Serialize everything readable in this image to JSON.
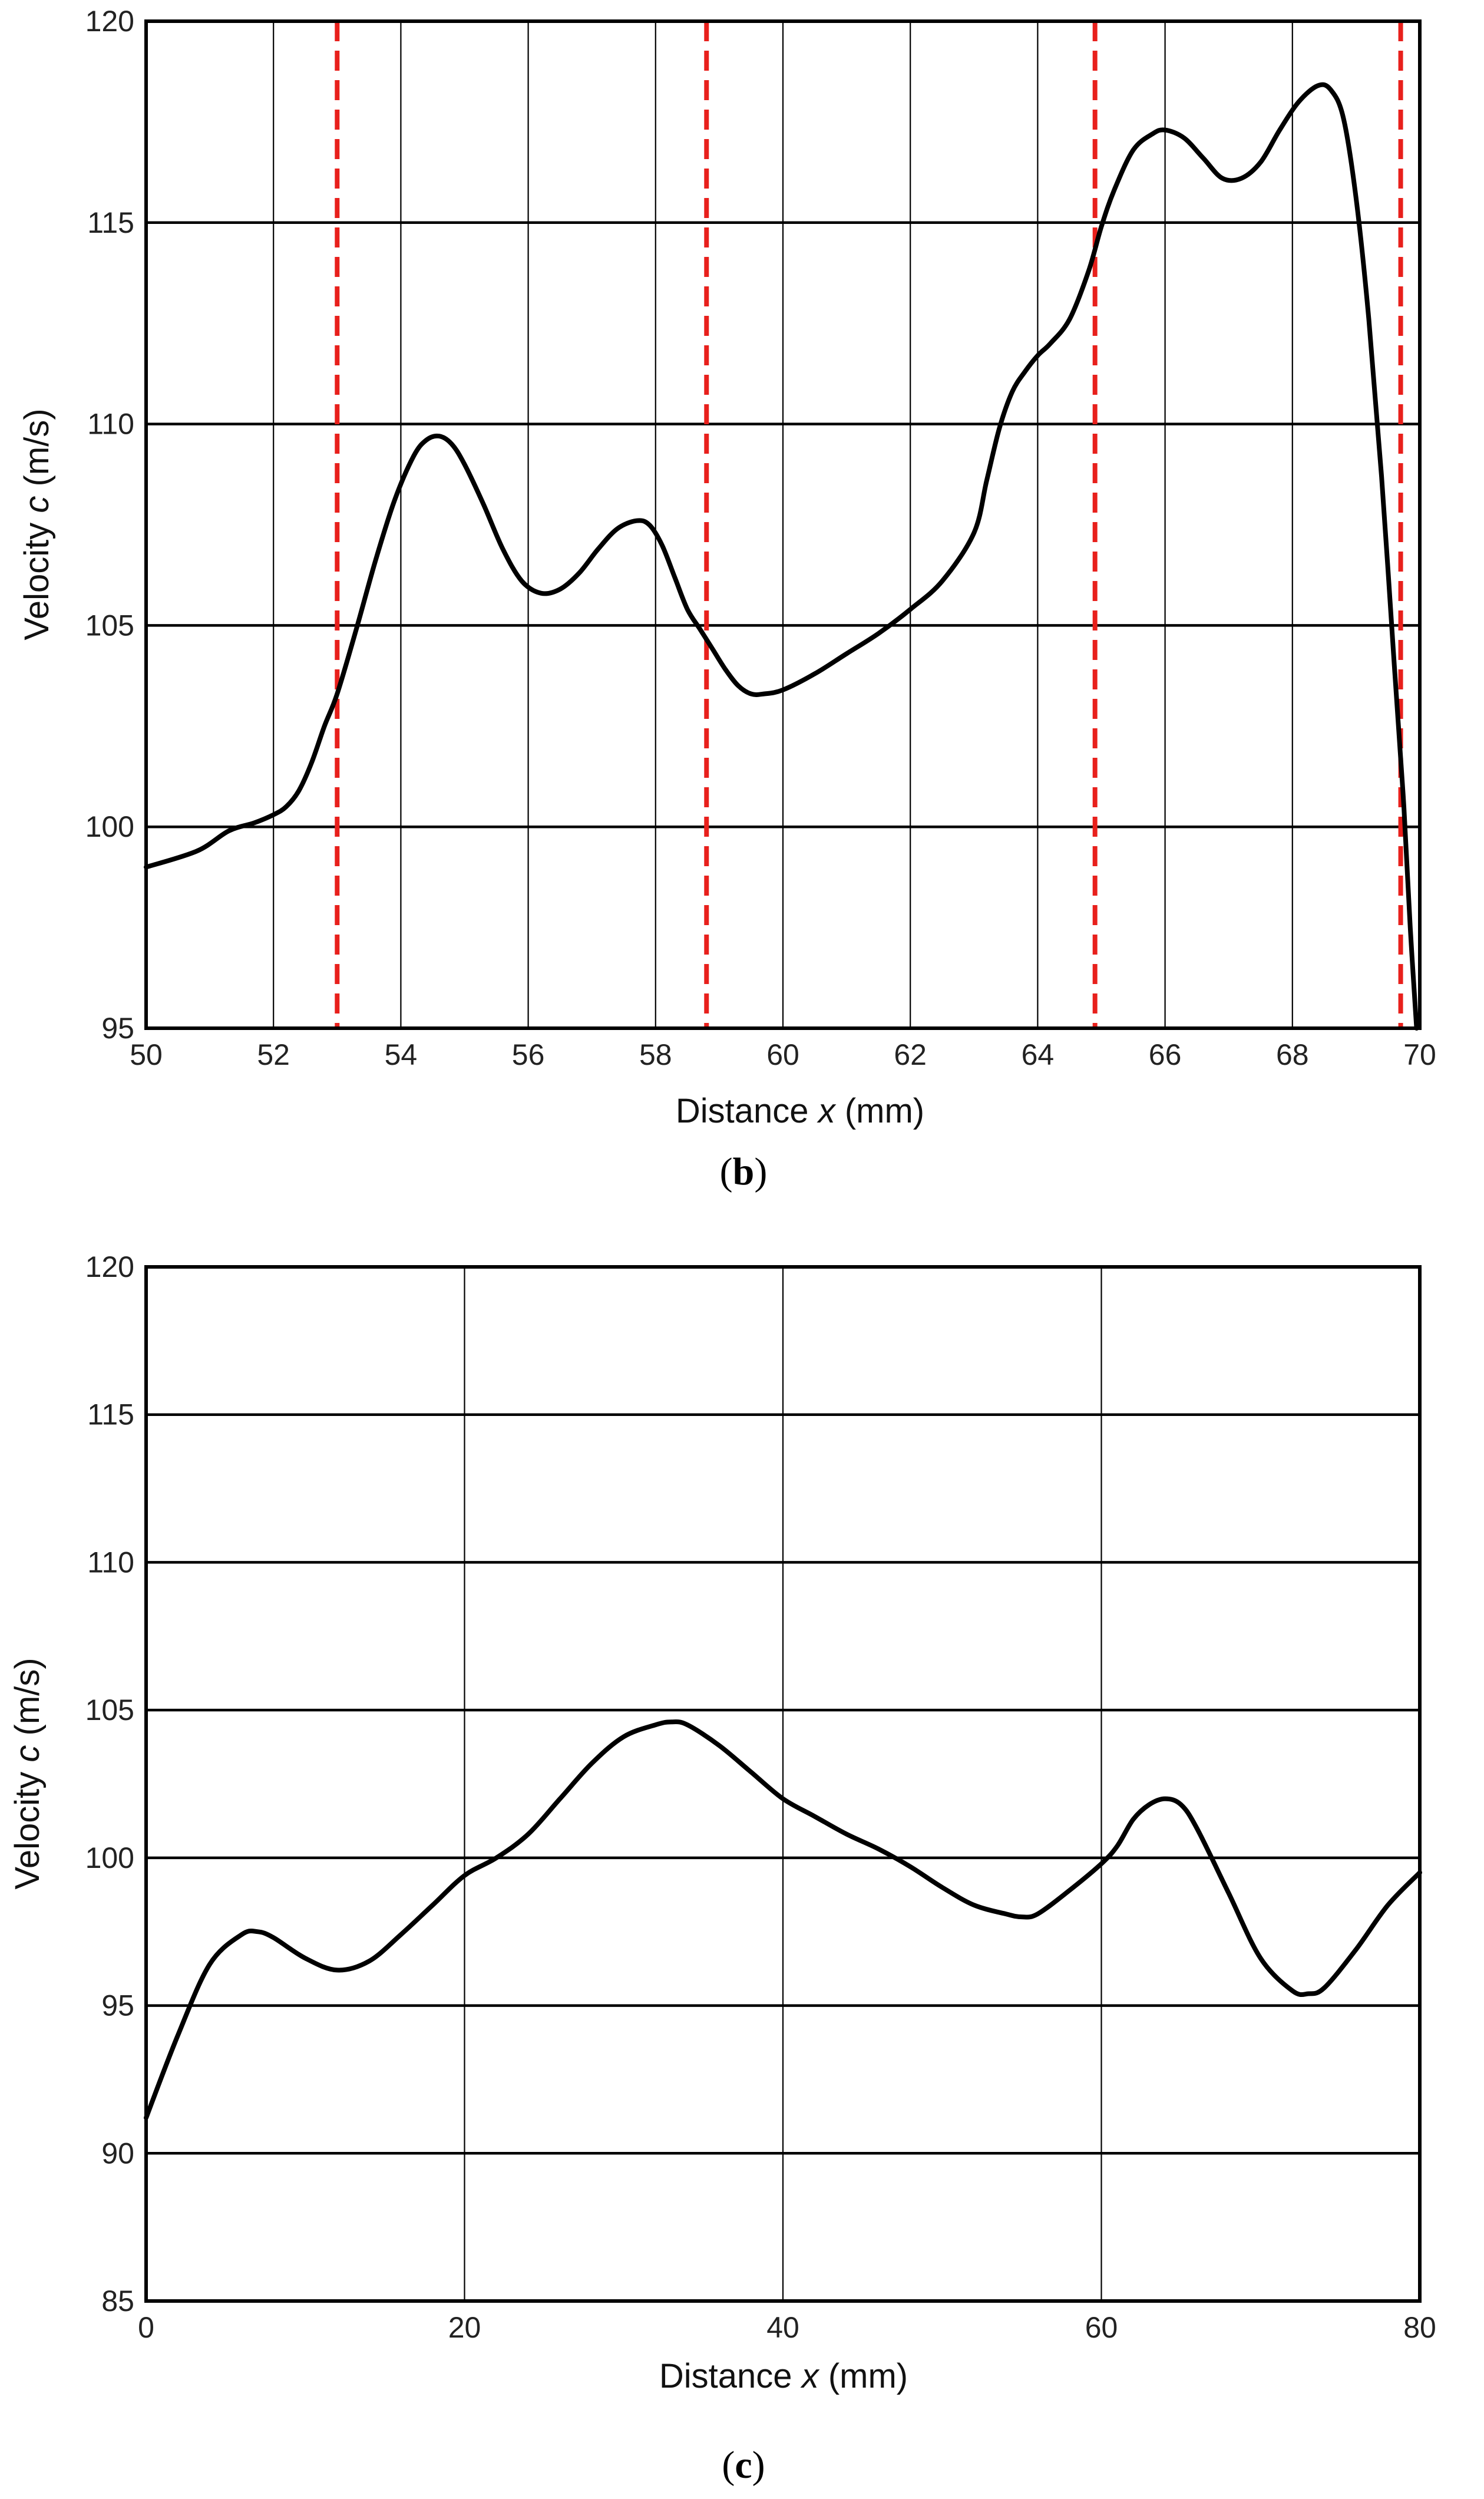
{
  "chart_data": [
    {
      "type": "line",
      "panel_label": "b",
      "xlabel_prefix": "Distance",
      "xlabel_var": "x",
      "xlabel_unit": "(mm)",
      "ylabel_prefix": "Velocity",
      "ylabel_var": "c",
      "ylabel_unit": "(m/s)",
      "xlim": [
        50,
        70
      ],
      "ylim": [
        95,
        120
      ],
      "xticks": [
        50,
        52,
        54,
        56,
        58,
        60,
        62,
        64,
        66,
        68,
        70
      ],
      "yticks": [
        95,
        100,
        105,
        110,
        115,
        120
      ],
      "grid": true,
      "markers": [
        53.0,
        58.8,
        64.9,
        69.7
      ],
      "marker_color": "#e8201c",
      "series": [
        {
          "name": "velocity",
          "color": "#000000",
          "x": [
            50.0,
            50.8,
            51.3,
            51.7,
            52.0,
            52.2,
            52.4,
            52.6,
            52.8,
            53.0,
            53.3,
            53.6,
            53.9,
            54.2,
            54.4,
            54.6,
            54.8,
            55.0,
            55.3,
            55.6,
            55.9,
            56.2,
            56.5,
            56.8,
            57.1,
            57.4,
            57.7,
            57.9,
            58.1,
            58.3,
            58.5,
            58.7,
            58.9,
            59.1,
            59.3,
            59.5,
            59.7,
            60.0,
            60.5,
            61.0,
            61.5,
            62.0,
            62.5,
            63.0,
            63.2,
            63.4,
            63.6,
            63.8,
            64.0,
            64.2,
            64.5,
            64.8,
            65.0,
            65.2,
            65.5,
            65.8,
            66.0,
            66.3,
            66.6,
            66.9,
            67.2,
            67.5,
            67.8,
            68.1,
            68.4,
            68.6,
            68.8,
            69.0,
            69.2,
            69.4,
            69.6,
            69.75,
            69.85,
            69.95
          ],
          "y": [
            99.0,
            99.4,
            99.9,
            100.1,
            100.3,
            100.5,
            100.9,
            101.6,
            102.5,
            103.3,
            104.9,
            106.6,
            108.1,
            109.2,
            109.6,
            109.7,
            109.5,
            109.0,
            108.0,
            106.9,
            106.1,
            105.8,
            105.9,
            106.3,
            106.9,
            107.4,
            107.6,
            107.5,
            107.0,
            106.2,
            105.4,
            104.9,
            104.4,
            103.9,
            103.5,
            103.3,
            103.3,
            103.4,
            103.8,
            104.3,
            104.8,
            105.4,
            106.1,
            107.3,
            108.6,
            109.9,
            110.8,
            111.3,
            111.7,
            112.0,
            112.6,
            113.8,
            114.9,
            115.8,
            116.8,
            117.2,
            117.3,
            117.1,
            116.6,
            116.1,
            116.1,
            116.5,
            117.3,
            118.0,
            118.4,
            118.3,
            117.6,
            115.6,
            112.6,
            108.7,
            104.0,
            100.5,
            97.5,
            95.0
          ]
        }
      ]
    },
    {
      "type": "line",
      "panel_label": "c",
      "xlabel_prefix": "Distance",
      "xlabel_var": "x",
      "xlabel_unit": "(mm)",
      "ylabel_prefix": "Velocity",
      "ylabel_var": "c",
      "ylabel_unit": "(m/s)",
      "xlim": [
        0,
        80
      ],
      "ylim": [
        85,
        120
      ],
      "xticks": [
        0,
        20,
        40,
        60,
        80
      ],
      "yticks": [
        85,
        90,
        95,
        100,
        105,
        110,
        115,
        120
      ],
      "grid": true,
      "markers": [],
      "series": [
        {
          "name": "velocity",
          "color": "#000000",
          "x": [
            0,
            2,
            4,
            6,
            7,
            8,
            10,
            12,
            14,
            16,
            18,
            20,
            22,
            24,
            26,
            28,
            30,
            32,
            33,
            34,
            36,
            38,
            40,
            42,
            44,
            46,
            48,
            50,
            52,
            54,
            55,
            56,
            58,
            60,
            61,
            62,
            63,
            64,
            65,
            66,
            68,
            70,
            72,
            73,
            74,
            76,
            78,
            80
          ],
          "y": [
            91.2,
            94.0,
            96.4,
            97.4,
            97.5,
            97.3,
            96.6,
            96.2,
            96.5,
            97.4,
            98.4,
            99.4,
            100.0,
            100.8,
            102.0,
            103.2,
            104.1,
            104.5,
            104.6,
            104.5,
            103.8,
            102.9,
            102.0,
            101.4,
            100.8,
            100.3,
            99.7,
            99.0,
            98.4,
            98.1,
            98.0,
            98.1,
            98.9,
            99.8,
            100.4,
            101.3,
            101.8,
            102.0,
            101.8,
            101.0,
            98.8,
            96.6,
            95.5,
            95.4,
            95.6,
            96.9,
            98.4,
            99.5
          ]
        }
      ]
    }
  ]
}
